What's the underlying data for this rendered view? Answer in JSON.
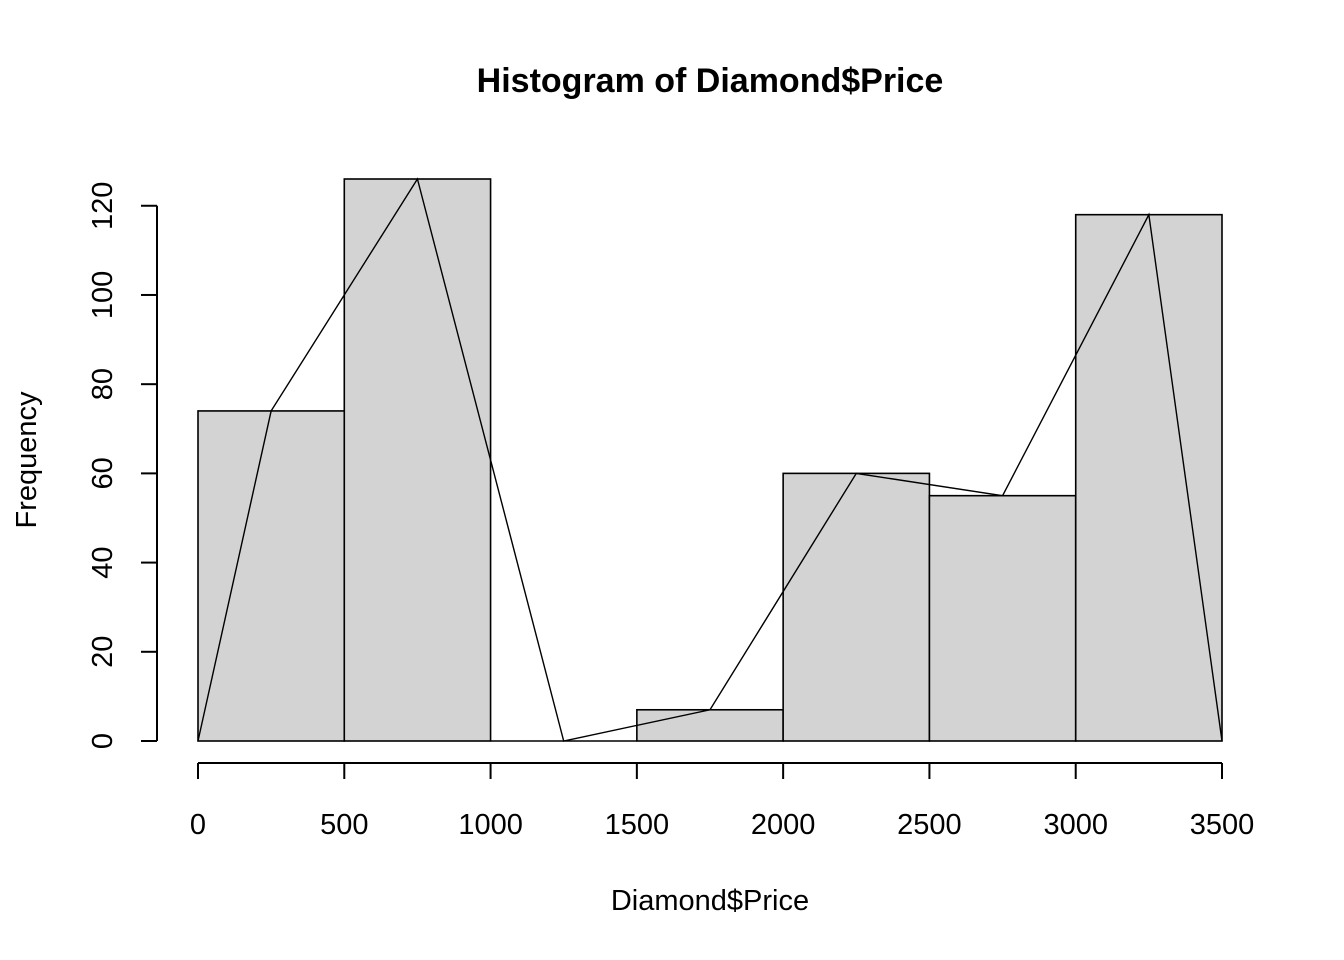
{
  "chart_data": {
    "type": "bar",
    "title": "Histogram of Diamond$Price",
    "xlabel": "Diamond$Price",
    "ylabel": "Frequency",
    "xlim": [
      0,
      3500
    ],
    "ylim": [
      0,
      126
    ],
    "x_ticks": [
      0,
      500,
      1000,
      1500,
      2000,
      2500,
      3000,
      3500
    ],
    "y_ticks": [
      0,
      20,
      40,
      60,
      80,
      100,
      120
    ],
    "bins": [
      {
        "start": 0,
        "end": 500,
        "count": 74
      },
      {
        "start": 500,
        "end": 1000,
        "count": 126
      },
      {
        "start": 1000,
        "end": 1500,
        "count": 0
      },
      {
        "start": 1500,
        "end": 2000,
        "count": 7
      },
      {
        "start": 2000,
        "end": 2500,
        "count": 60
      },
      {
        "start": 2500,
        "end": 3000,
        "count": 55
      },
      {
        "start": 3000,
        "end": 3500,
        "count": 118
      }
    ],
    "frequency_polygon": {
      "x": [
        0,
        250,
        750,
        1250,
        1750,
        2250,
        2750,
        3250,
        3500
      ],
      "y": [
        0,
        74,
        126,
        0,
        7,
        60,
        55,
        118,
        0
      ]
    },
    "colors": {
      "bar_fill": "#d3d3d3",
      "stroke": "#000000"
    },
    "grid": false
  }
}
